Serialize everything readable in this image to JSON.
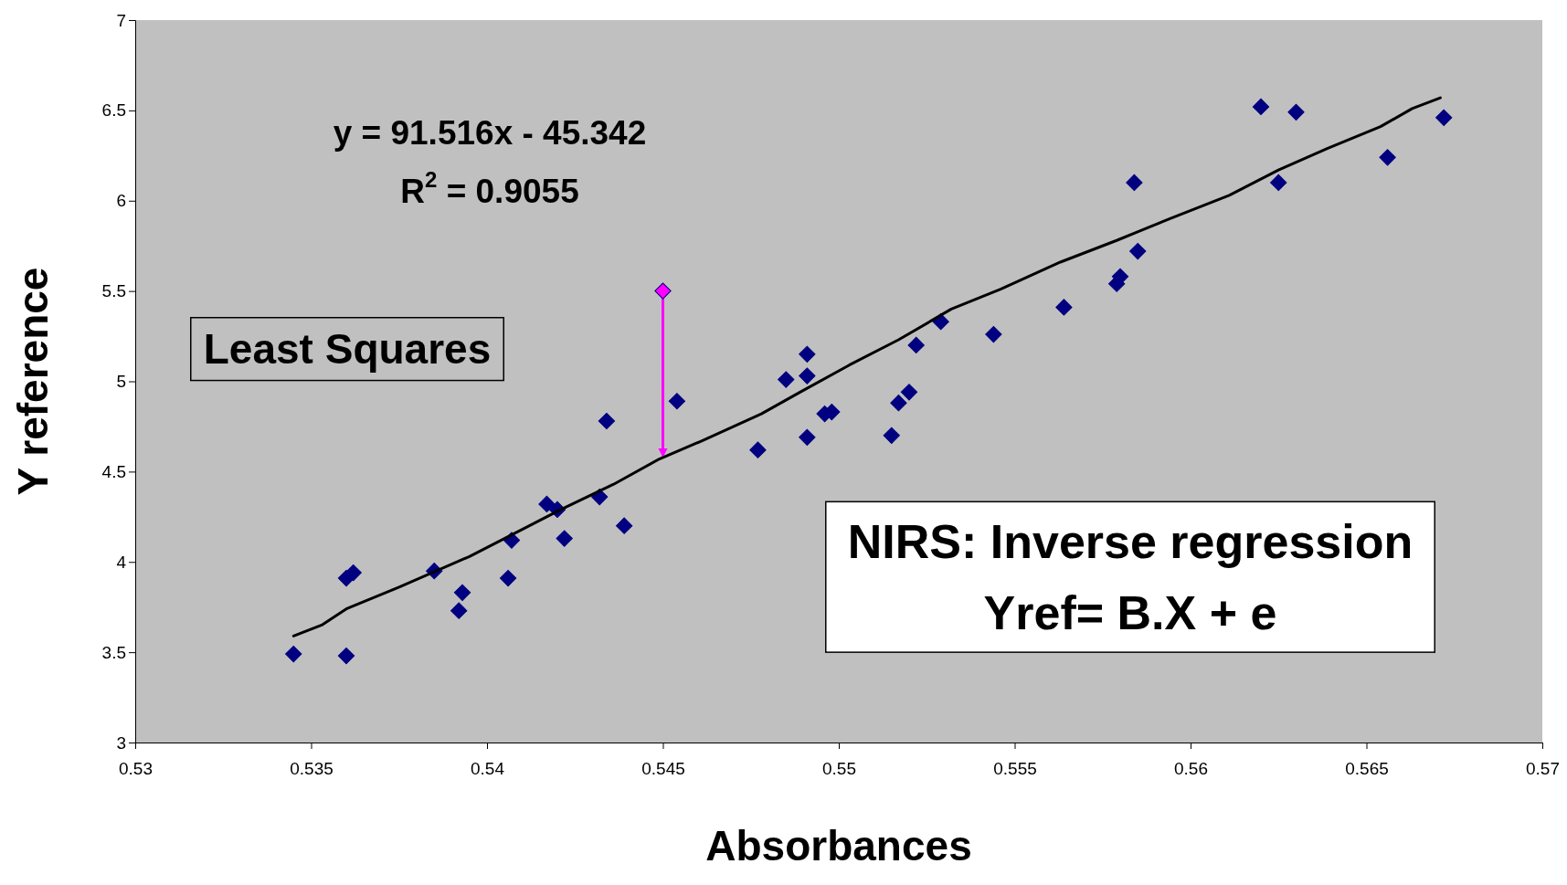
{
  "chart_data": {
    "type": "scatter",
    "xlabel": "Absorbances",
    "ylabel": "Y reference",
    "xlim": [
      0.53,
      0.57
    ],
    "xticks": [
      0.53,
      0.535,
      0.54,
      0.545,
      0.55,
      0.555,
      0.56,
      0.565,
      0.57
    ],
    "ylim": [
      3,
      7
    ],
    "yticks": [
      3,
      3.5,
      4,
      4.5,
      5,
      5.5,
      6,
      6.5,
      7
    ],
    "grid": false,
    "annotations": [
      "y = 91.516x - 45.342",
      "R$^{2}$ = 0.9055",
      "Least Squares",
      "NIRS: Inverse regression\nYref= B.X + e"
    ],
    "series": [
      {
        "type": "scatter",
        "color": "#000080",
        "marker": "diamond",
        "x": [
          0.5345,
          0.536,
          0.536,
          0.5362,
          0.5385,
          0.5393,
          0.5392,
          0.5406,
          0.5407,
          0.5417,
          0.542,
          0.5422,
          0.5432,
          0.5434,
          0.5439,
          0.5454,
          0.5477,
          0.5485,
          0.5491,
          0.5491,
          0.5491,
          0.5496,
          0.5498,
          0.5515,
          0.5517,
          0.552,
          0.5522,
          0.5529,
          0.5544,
          0.5564,
          0.5579,
          0.558,
          0.5584,
          0.5585,
          0.562,
          0.5625,
          0.563,
          0.5656,
          0.5672
        ],
        "values": [
          3.49,
          3.48,
          3.91,
          3.94,
          3.95,
          3.83,
          3.73,
          3.91,
          4.12,
          4.32,
          4.29,
          4.13,
          4.36,
          4.78,
          4.2,
          4.89,
          4.62,
          5.01,
          5.15,
          5.03,
          4.69,
          4.82,
          4.83,
          4.7,
          4.88,
          4.94,
          5.2,
          5.33,
          5.26,
          5.41,
          5.54,
          5.58,
          6.1,
          5.72,
          6.52,
          6.1,
          6.49,
          6.24,
          6.46
        ]
      },
      {
        "type": "line",
        "color": "#000000",
        "marker": "none",
        "line_style": "solid",
        "x": [
          0.5345,
          0.5353,
          0.536,
          0.5375,
          0.5395,
          0.5407,
          0.5421,
          0.5436,
          0.5449,
          0.5461,
          0.5478,
          0.5489,
          0.5503,
          0.5517,
          0.5532,
          0.5546,
          0.5563,
          0.5579,
          0.5594,
          0.5611,
          0.5625,
          0.5639,
          0.5654,
          0.5663,
          0.5671
        ],
        "values": [
          3.59,
          3.65,
          3.74,
          3.86,
          4.03,
          4.15,
          4.29,
          4.43,
          4.57,
          4.67,
          4.82,
          4.94,
          5.09,
          5.23,
          5.4,
          5.51,
          5.66,
          5.78,
          5.9,
          6.03,
          6.17,
          6.29,
          6.41,
          6.51,
          6.57
        ]
      },
      {
        "type": "scatter",
        "color": "#ff00ff",
        "marker": "diamond",
        "x": [
          0.545
        ],
        "values": [
          5.5
        ]
      }
    ]
  }
}
